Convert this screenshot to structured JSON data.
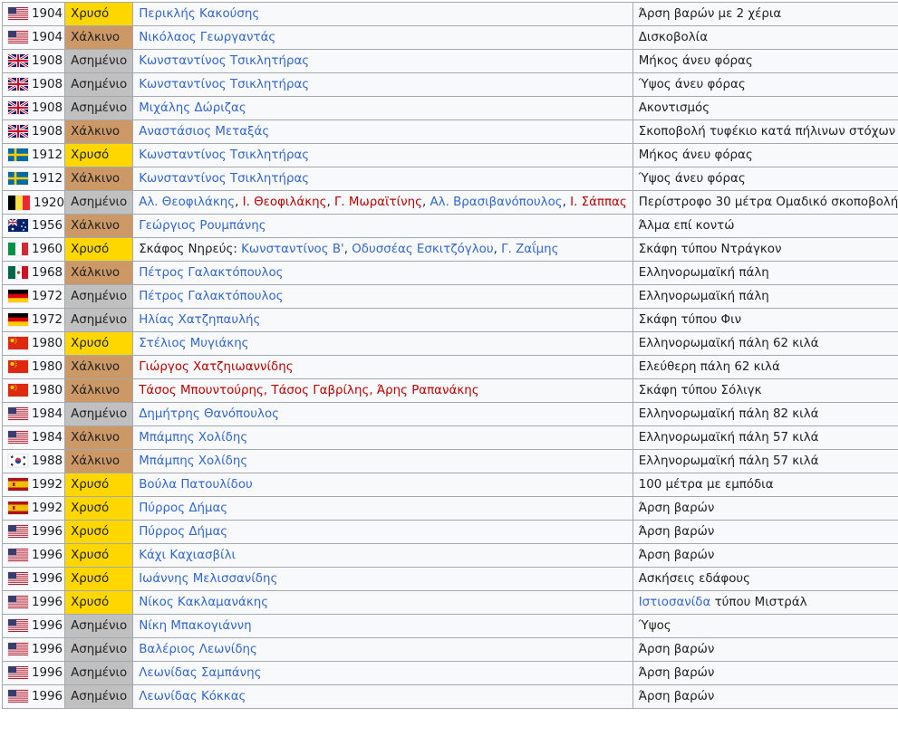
{
  "medal_colors": {
    "Χρυσό": "#ffd700",
    "Ασημένιο": "#c0c0c0",
    "Χάλκινο": "#cc9966"
  },
  "rows": [
    {
      "year": "1904",
      "medal": "Χρυσό",
      "athlete": [
        {
          "text": "Περικλής Κακούσης",
          "style": "link"
        }
      ],
      "event": [
        {
          "text": "Άρση βαρών με 2 χέρια",
          "style": "plain"
        }
      ]
    },
    {
      "year": "1904",
      "medal": "Χάλκινο",
      "athlete": [
        {
          "text": "Νικόλαος Γεωργαντάς",
          "style": "link"
        }
      ],
      "event": [
        {
          "text": "Δισκοβολία",
          "style": "plain"
        }
      ]
    },
    {
      "year": "1908",
      "medal": "Ασημένιο",
      "athlete": [
        {
          "text": "Κωνσταντίνος Τσικλητήρας",
          "style": "link"
        }
      ],
      "event": [
        {
          "text": "Μήκος άνευ φόρας",
          "style": "plain"
        }
      ]
    },
    {
      "year": "1908",
      "medal": "Ασημένιο",
      "athlete": [
        {
          "text": "Κωνσταντίνος Τσικλητήρας",
          "style": "link"
        }
      ],
      "event": [
        {
          "text": "Ύψος άνευ φόρας",
          "style": "plain"
        }
      ]
    },
    {
      "year": "1908",
      "medal": "Ασημένιο",
      "athlete": [
        {
          "text": "Μιχάλης Δώριζας",
          "style": "link"
        }
      ],
      "event": [
        {
          "text": "Ακοντισμός",
          "style": "plain"
        }
      ]
    },
    {
      "year": "1908",
      "medal": "Χάλκινο",
      "athlete": [
        {
          "text": "Αναστάσιος Μεταξάς",
          "style": "link"
        }
      ],
      "event": [
        {
          "text": "Σκοποβολή τυφέκιο κατά πήλινων στόχων",
          "style": "plain"
        }
      ]
    },
    {
      "year": "1912",
      "medal": "Χρυσό",
      "athlete": [
        {
          "text": "Κωνσταντίνος Τσικλητήρας",
          "style": "link"
        }
      ],
      "event": [
        {
          "text": "Μήκος άνευ φόρας",
          "style": "plain"
        }
      ]
    },
    {
      "year": "1912",
      "medal": "Χάλκινο",
      "athlete": [
        {
          "text": "Κωνσταντίνος Τσικλητήρας",
          "style": "link"
        }
      ],
      "event": [
        {
          "text": "Ύψος άνευ φόρας",
          "style": "plain"
        }
      ]
    },
    {
      "year": "1920",
      "medal": "Ασημένιο",
      "athlete": [
        {
          "text": "Αλ. Θεοφιλάκης",
          "style": "link"
        },
        {
          "text": ", ",
          "style": "plain"
        },
        {
          "text": "Ι. Θεοφιλάκης",
          "style": "new"
        },
        {
          "text": ", ",
          "style": "plain"
        },
        {
          "text": "Γ. Μωραϊτίνης",
          "style": "new"
        },
        {
          "text": ", ",
          "style": "plain"
        },
        {
          "text": "Αλ. Βρασιβανόπουλος",
          "style": "link"
        },
        {
          "text": ", ",
          "style": "plain"
        },
        {
          "text": "Ι. Σάππας",
          "style": "new"
        }
      ],
      "event": [
        {
          "text": "Περίστροφο 30 μέτρα Ομαδικό σκοποβολής",
          "style": "plain"
        }
      ]
    },
    {
      "year": "1956",
      "medal": "Χάλκινο",
      "athlete": [
        {
          "text": "Γεώργιος Ρουμπάνης",
          "style": "link"
        }
      ],
      "event": [
        {
          "text": "Άλμα επί κοντώ",
          "style": "plain"
        }
      ]
    },
    {
      "year": "1960",
      "medal": "Χρυσό",
      "athlete": [
        {
          "text": "Σκάφος Νηρεύς: ",
          "style": "plain"
        },
        {
          "text": "Κωνσταντίνος Β'",
          "style": "link"
        },
        {
          "text": ", ",
          "style": "plain"
        },
        {
          "text": "Οδυσσέας Εσκιτζόγλου",
          "style": "link"
        },
        {
          "text": ", ",
          "style": "plain"
        },
        {
          "text": "Γ. Ζαΐμης",
          "style": "link"
        }
      ],
      "event": [
        {
          "text": "Σκάφη τύπου Ντράγκον",
          "style": "plain"
        }
      ]
    },
    {
      "year": "1968",
      "medal": "Χάλκινο",
      "athlete": [
        {
          "text": "Πέτρος Γαλακτόπουλος",
          "style": "link"
        }
      ],
      "event": [
        {
          "text": "Ελληνορωμαϊκή πάλη",
          "style": "plain"
        }
      ]
    },
    {
      "year": "1972",
      "medal": "Ασημένιο",
      "athlete": [
        {
          "text": "Πέτρος Γαλακτόπουλος",
          "style": "link"
        }
      ],
      "event": [
        {
          "text": "Ελληνορωμαϊκή πάλη",
          "style": "plain"
        }
      ]
    },
    {
      "year": "1972",
      "medal": "Ασημένιο",
      "athlete": [
        {
          "text": "Ηλίας Χατζηπαυλής",
          "style": "link"
        }
      ],
      "event": [
        {
          "text": "Σκάφη τύπου Φιν",
          "style": "plain"
        }
      ]
    },
    {
      "year": "1980",
      "medal": "Χρυσό",
      "athlete": [
        {
          "text": "Στέλιος Μυγιάκης",
          "style": "link"
        }
      ],
      "event": [
        {
          "text": "Ελληνορωμαϊκή πάλη 62 κιλά",
          "style": "plain"
        }
      ]
    },
    {
      "year": "1980",
      "medal": "Χάλκινο",
      "athlete": [
        {
          "text": "Γιώργος Χατζηιωαννίδης",
          "style": "new"
        }
      ],
      "event": [
        {
          "text": "Ελεύθερη πάλη 62 κιλά",
          "style": "plain"
        }
      ]
    },
    {
      "year": "1980",
      "medal": "Χάλκινο",
      "athlete": [
        {
          "text": "Τάσος Μπουντούρης",
          "style": "new"
        },
        {
          "text": ", ",
          "style": "new"
        },
        {
          "text": "Τάσος Γαβρίλης",
          "style": "new"
        },
        {
          "text": ", ",
          "style": "new"
        },
        {
          "text": "Άρης Ραπανάκης",
          "style": "new"
        }
      ],
      "event": [
        {
          "text": "Σκάφη τύπου Σόλιγκ",
          "style": "plain"
        }
      ]
    },
    {
      "year": "1984",
      "medal": "Ασημένιο",
      "athlete": [
        {
          "text": "Δημήτρης Θανόπουλος",
          "style": "link"
        }
      ],
      "event": [
        {
          "text": "Ελληνορωμαϊκή πάλη 82 κιλά",
          "style": "plain"
        }
      ]
    },
    {
      "year": "1984",
      "medal": "Χάλκινο",
      "athlete": [
        {
          "text": "Μπάμπης Χολίδης",
          "style": "link"
        }
      ],
      "event": [
        {
          "text": "Ελληνορωμαϊκή πάλη 57 κιλά",
          "style": "plain"
        }
      ]
    },
    {
      "year": "1988",
      "medal": "Χάλκινο",
      "athlete": [
        {
          "text": "Μπάμπης Χολίδης",
          "style": "link"
        }
      ],
      "event": [
        {
          "text": "Ελληνορωμαϊκή πάλη 57 κιλά",
          "style": "plain"
        }
      ]
    },
    {
      "year": "1992",
      "medal": "Χρυσό",
      "athlete": [
        {
          "text": "Βούλα Πατουλίδου",
          "style": "link"
        }
      ],
      "event": [
        {
          "text": "100 μέτρα με εμπόδια",
          "style": "plain"
        }
      ]
    },
    {
      "year": "1992",
      "medal": "Χρυσό",
      "athlete": [
        {
          "text": "Πύρρος Δήμας",
          "style": "link"
        }
      ],
      "event": [
        {
          "text": "Άρση βαρών",
          "style": "plain"
        }
      ]
    },
    {
      "year": "1996",
      "medal": "Χρυσό",
      "athlete": [
        {
          "text": "Πύρρος Δήμας",
          "style": "link"
        }
      ],
      "event": [
        {
          "text": "Άρση βαρών",
          "style": "plain"
        }
      ]
    },
    {
      "year": "1996",
      "medal": "Χρυσό",
      "athlete": [
        {
          "text": "Κάχι Καχιασβίλι",
          "style": "link"
        }
      ],
      "event": [
        {
          "text": "Άρση βαρών",
          "style": "plain"
        }
      ]
    },
    {
      "year": "1996",
      "medal": "Χρυσό",
      "athlete": [
        {
          "text": "Ιωάννης Μελισσανίδης",
          "style": "link"
        }
      ],
      "event": [
        {
          "text": "Ασκήσεις εδάφους",
          "style": "plain"
        }
      ]
    },
    {
      "year": "1996",
      "medal": "Χρυσό",
      "athlete": [
        {
          "text": "Νίκος Κακλαμανάκης",
          "style": "link"
        }
      ],
      "event": [
        {
          "text": "Ιστιοσανίδα",
          "style": "link"
        },
        {
          "text": " τύπου Μιστράλ",
          "style": "plain"
        }
      ]
    },
    {
      "year": "1996",
      "medal": "Ασημένιο",
      "athlete": [
        {
          "text": "Νίκη Μπακογιάννη",
          "style": "link"
        }
      ],
      "event": [
        {
          "text": "Ύψος",
          "style": "plain"
        }
      ]
    },
    {
      "year": "1996",
      "medal": "Ασημένιο",
      "athlete": [
        {
          "text": "Βαλέριος Λεωνίδης",
          "style": "link"
        }
      ],
      "event": [
        {
          "text": "Άρση βαρών",
          "style": "plain"
        }
      ]
    },
    {
      "year": "1996",
      "medal": "Ασημένιο",
      "athlete": [
        {
          "text": "Λεωνίδας Σαμπάνης",
          "style": "link"
        }
      ],
      "event": [
        {
          "text": "Άρση βαρών",
          "style": "plain"
        }
      ]
    },
    {
      "year": "1996",
      "medal": "Ασημένιο",
      "athlete": [
        {
          "text": "Λεωνίδας Κόκκας",
          "style": "link"
        }
      ],
      "event": [
        {
          "text": "Άρση βαρών",
          "style": "plain"
        }
      ]
    }
  ]
}
